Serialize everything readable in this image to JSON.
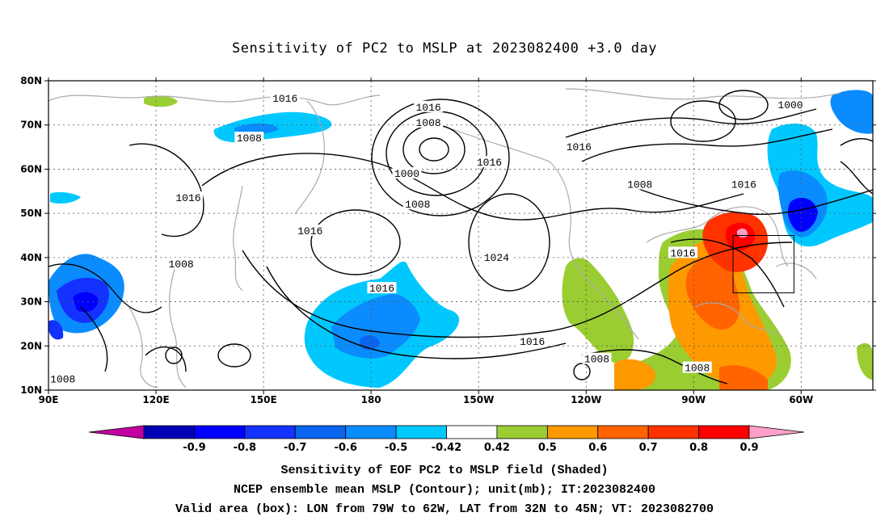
{
  "title": "Sensitivity of PC2 to MSLP at 2023082400 +3.0 day",
  "map": {
    "lat_ticks": [
      "80N",
      "70N",
      "60N",
      "50N",
      "40N",
      "30N",
      "20N",
      "10N"
    ],
    "lon_ticks": [
      "90E",
      "120E",
      "150E",
      "180",
      "150W",
      "120W",
      "90W",
      "60W"
    ],
    "lon_range": [
      90,
      320
    ],
    "lat_range": [
      10,
      80
    ],
    "contour_labels": [
      {
        "text": "1016",
        "lon": 196,
        "lat": 74
      },
      {
        "text": "1008",
        "lon": 196,
        "lat": 70.5
      },
      {
        "text": "1000",
        "lon": 190,
        "lat": 59
      },
      {
        "text": "1016",
        "lon": 213,
        "lat": 61.5
      },
      {
        "text": "1008",
        "lon": 193,
        "lat": 52
      },
      {
        "text": "1024",
        "lon": 215,
        "lat": 40
      },
      {
        "text": "1016",
        "lon": 156,
        "lat": 76
      },
      {
        "text": "1008",
        "lon": 146,
        "lat": 67
      },
      {
        "text": "1016",
        "lon": 129,
        "lat": 53.5
      },
      {
        "text": "1016",
        "lon": 163,
        "lat": 46
      },
      {
        "text": "1008",
        "lon": 127,
        "lat": 38.5
      },
      {
        "text": "1016",
        "lon": 183,
        "lat": 33
      },
      {
        "text": "1016",
        "lon": 225,
        "lat": 21
      },
      {
        "text": "1008",
        "lon": 243,
        "lat": 17
      },
      {
        "text": "1008",
        "lon": 271,
        "lat": 15
      },
      {
        "text": "1016",
        "lon": 267,
        "lat": 41
      },
      {
        "text": "1016",
        "lon": 284,
        "lat": 56.5
      },
      {
        "text": "1008",
        "lon": 255,
        "lat": 56.5
      },
      {
        "text": "1016",
        "lon": 238,
        "lat": 65
      },
      {
        "text": "1000",
        "lon": 297,
        "lat": 74.5
      },
      {
        "text": "1008",
        "lon": 94,
        "lat": 12.5
      }
    ],
    "valid_box": {
      "lon_west": -79,
      "lon_east": -62,
      "lat_south": 32,
      "lat_north": 45
    }
  },
  "colorbar": {
    "tick_labels": [
      "-0.9",
      "-0.8",
      "-0.7",
      "-0.6",
      "-0.5",
      "-0.42",
      "0.42",
      "0.5",
      "0.6",
      "0.7",
      "0.8",
      "0.9"
    ],
    "colors": [
      "#c000a0",
      "#0000b4",
      "#0000ff",
      "#1432ff",
      "#0a64f0",
      "#0a8cff",
      "#00c8ff",
      "#ffffff",
      "#9acd32",
      "#ff9900",
      "#ff6400",
      "#ff3200",
      "#ff0000",
      "#ffa0c8"
    ]
  },
  "captions": {
    "line1": "Sensitivity of EOF PC2 to MSLP field (Shaded)",
    "line2": "NCEP ensemble mean MSLP (Contour); unit(mb); IT:2023082400",
    "line3": "Valid area (box): LON from 79W to 62W, LAT from 32N to 45N; VT: 2023082700"
  },
  "colors": {
    "coast": "#aaaaaa",
    "contour": "#000000",
    "grid": "#555555"
  }
}
